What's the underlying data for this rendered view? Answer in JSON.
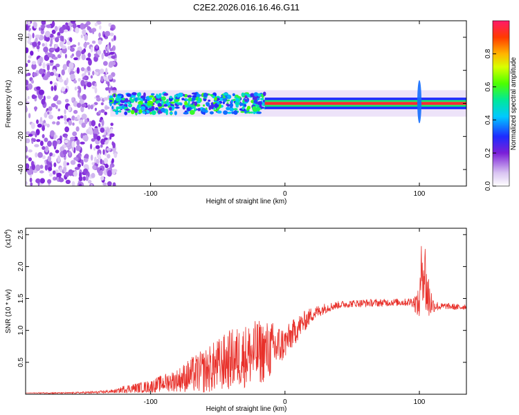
{
  "figure_title": "C2E2.2026.016.16.46.G11",
  "chart_data": [
    {
      "type": "heatmap",
      "title": "C2E2.2026.016.16.46.G11",
      "xlabel": "Height of straight line (km)",
      "ylabel": "Frequency (Hz)",
      "xlim": [
        -193,
        135
      ],
      "ylim": [
        -50,
        50
      ],
      "xticks": [
        -100,
        0,
        100
      ],
      "yticks": [
        -40,
        -20,
        0,
        20,
        40
      ],
      "colorbar": {
        "label": "Normalized spectral amplitude",
        "range": [
          0,
          1
        ],
        "ticks": [
          "0.0",
          "0.2",
          "0.4",
          "0.6",
          "0.8"
        ]
      },
      "regions": [
        {
          "name": "broadband noise",
          "x_from": -193,
          "x_to": -130,
          "freq_from": -50,
          "freq_to": 50,
          "amplitude": 0.12
        },
        {
          "name": "scattered signal",
          "x_from": -130,
          "x_to": -15,
          "center_freq": 0,
          "half_width_hz": 6,
          "amplitude": 0.45
        },
        {
          "name": "coherent tone",
          "x_from": -15,
          "x_to": 135,
          "center_freq": 0,
          "half_width_hz": 2,
          "amplitude": 0.95
        },
        {
          "name": "transient at 100 km",
          "x_from": 97,
          "x_to": 103,
          "freq_from": -12,
          "freq_to": 14,
          "amplitude": 0.35
        }
      ]
    },
    {
      "type": "line",
      "xlabel": "Height of straight line (km)",
      "ylabel": "SNR (10 * v/v)",
      "scale_label": "(x10",
      "scale_exponent": "4",
      "scale_close": ")",
      "xlim": [
        -193,
        135
      ],
      "ylim": [
        0,
        2.6
      ],
      "xticks": [
        -100,
        0,
        100
      ],
      "yticks": [
        0.5,
        1.0,
        1.5,
        2.0,
        2.5
      ],
      "ytick_labels": [
        "0.5",
        "1.0",
        "1.5",
        "2.0",
        "2.5"
      ],
      "series": [
        {
          "name": "SNR",
          "color": "#e8302a",
          "x": [
            -193,
            -180,
            -160,
            -140,
            -125,
            -120,
            -110,
            -100,
            -90,
            -80,
            -70,
            -60,
            -50,
            -40,
            -30,
            -20,
            -10,
            0,
            10,
            20,
            30,
            40,
            50,
            60,
            70,
            80,
            90,
            95,
            100,
            102,
            104,
            106,
            110,
            115,
            120,
            125,
            130,
            135
          ],
          "y": [
            0.02,
            0.02,
            0.02,
            0.03,
            0.05,
            0.08,
            0.1,
            0.12,
            0.18,
            0.22,
            0.3,
            0.36,
            0.45,
            0.55,
            0.6,
            0.65,
            0.7,
            0.8,
            1.05,
            1.25,
            1.35,
            1.4,
            1.42,
            1.43,
            1.43,
            1.44,
            1.44,
            1.45,
            1.4,
            2.05,
            1.9,
            1.55,
            1.4,
            1.37,
            1.38,
            1.37,
            1.36,
            1.38
          ],
          "spread": [
            0,
            0.01,
            0.01,
            0.02,
            0.03,
            0.06,
            0.08,
            0.1,
            0.14,
            0.18,
            0.28,
            0.35,
            0.42,
            0.48,
            0.5,
            0.52,
            0.45,
            0.25,
            0.2,
            0.12,
            0.08,
            0.06,
            0.06,
            0.06,
            0.06,
            0.06,
            0.06,
            0.08,
            0.25,
            0.55,
            0.6,
            0.5,
            0.12,
            0.06,
            0.05,
            0.05,
            0.05,
            0.05
          ]
        }
      ]
    }
  ]
}
